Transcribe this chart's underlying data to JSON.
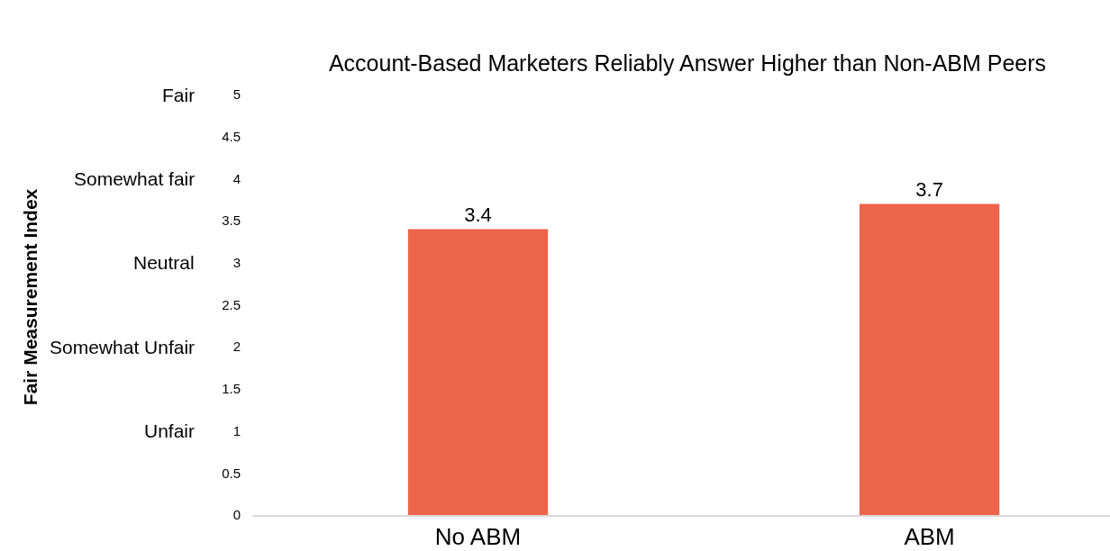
{
  "chart_data": {
    "type": "bar",
    "title": "Account-Based Marketers Reliably Answer Higher than Non-ABM Peers",
    "categories": [
      "No ABM",
      "ABM"
    ],
    "values": [
      3.4,
      3.7
    ],
    "color": "#eb644b",
    "data_labels": true,
    "ylim": [
      0,
      5
    ],
    "yticks": [
      0,
      0.5,
      1,
      1.5,
      2,
      2.5,
      3,
      3.5,
      4,
      4.5,
      5
    ],
    "annotations": [
      "Fair Measurement Index",
      "Fair",
      "Somewhat fair",
      "Neutral",
      "Somewhat Unfair",
      "Unfair"
    ]
  }
}
